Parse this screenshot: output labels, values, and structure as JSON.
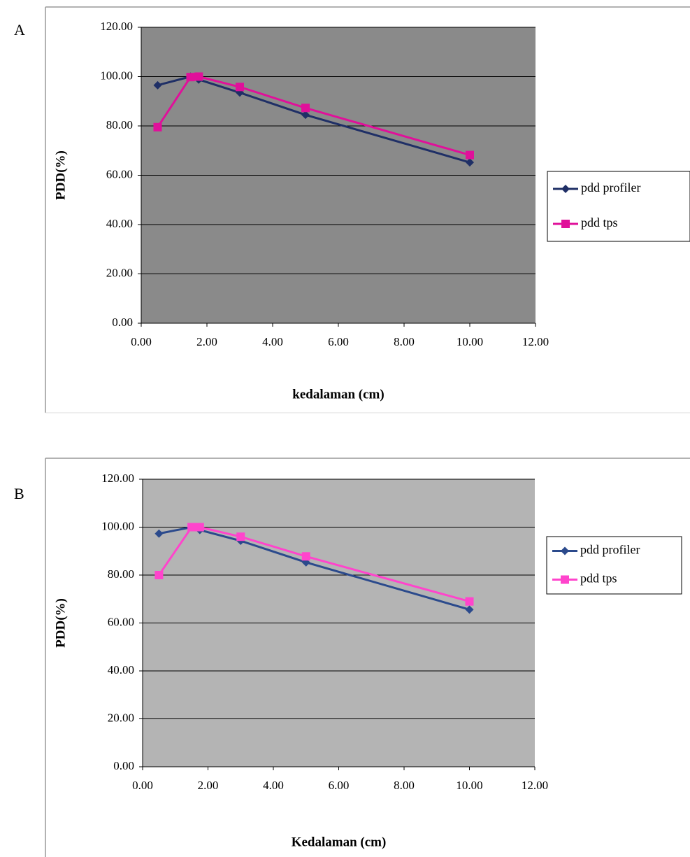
{
  "chart_data": [
    {
      "type": "line",
      "panel_label": "A",
      "x_label": "kedalaman (cm)",
      "y_label": "PDD(%)",
      "x": [
        0.5,
        1.5,
        1.75,
        3,
        5,
        10
      ],
      "series": [
        {
          "name": "pdd profiler",
          "color": "#1f2f66",
          "marker": "diamond",
          "values": [
            96.5,
            100,
            98.8,
            93.5,
            84.5,
            65.2
          ]
        },
        {
          "name": "pdd tps",
          "color": "#e0109a",
          "marker": "square",
          "values": [
            79.5,
            99.8,
            100,
            95.8,
            87.3,
            68.2
          ]
        }
      ],
      "xlim": [
        0,
        12
      ],
      "ylim": [
        0,
        120
      ],
      "xticks": [
        {
          "value": 0,
          "label": "0.00"
        },
        {
          "value": 2,
          "label": "2.00"
        },
        {
          "value": 4,
          "label": "4.00"
        },
        {
          "value": 6,
          "label": "6.00"
        },
        {
          "value": 8,
          "label": "8.00"
        },
        {
          "value": 10,
          "label": "10.00"
        },
        {
          "value": 12,
          "label": "12.00"
        }
      ],
      "yticks": [
        {
          "value": 0,
          "label": "0.00"
        },
        {
          "value": 20,
          "label": "20.00"
        },
        {
          "value": 40,
          "label": "40.00"
        },
        {
          "value": 60,
          "label": "60.00"
        },
        {
          "value": 80,
          "label": "80.00"
        },
        {
          "value": 100,
          "label": "100.00"
        },
        {
          "value": 120,
          "label": "120.00"
        }
      ],
      "grid": true,
      "plot_background": "#8a8a8a",
      "legend": "right"
    },
    {
      "type": "line",
      "panel_label": "B",
      "x_label": "Kedalaman (cm)",
      "y_label": "PDD(%)",
      "x": [
        0.5,
        1.5,
        1.75,
        3,
        5,
        10
      ],
      "series": [
        {
          "name": "pdd profiler",
          "color": "#2b4a8c",
          "marker": "diamond",
          "values": [
            97.3,
            100,
            98.8,
            94.3,
            85.3,
            65.6
          ]
        },
        {
          "name": "pdd tps",
          "color": "#ff44cc",
          "marker": "square",
          "values": [
            80,
            100,
            100,
            96,
            87.8,
            69
          ]
        }
      ],
      "xlim": [
        0,
        12
      ],
      "ylim": [
        0,
        120
      ],
      "xticks": [
        {
          "value": 0,
          "label": "0.00"
        },
        {
          "value": 2,
          "label": "2.00"
        },
        {
          "value": 4,
          "label": "4.00"
        },
        {
          "value": 6,
          "label": "6.00"
        },
        {
          "value": 8,
          "label": "8.00"
        },
        {
          "value": 10,
          "label": "10.00"
        },
        {
          "value": 12,
          "label": "12.00"
        }
      ],
      "yticks": [
        {
          "value": 0,
          "label": "0.00"
        },
        {
          "value": 20,
          "label": "20.00"
        },
        {
          "value": 40,
          "label": "40.00"
        },
        {
          "value": 60,
          "label": "60.00"
        },
        {
          "value": 80,
          "label": "80.00"
        },
        {
          "value": 100,
          "label": "100.00"
        },
        {
          "value": 120,
          "label": "120.00"
        }
      ],
      "grid": true,
      "plot_background": "#b4b4b4",
      "legend": "right"
    }
  ]
}
